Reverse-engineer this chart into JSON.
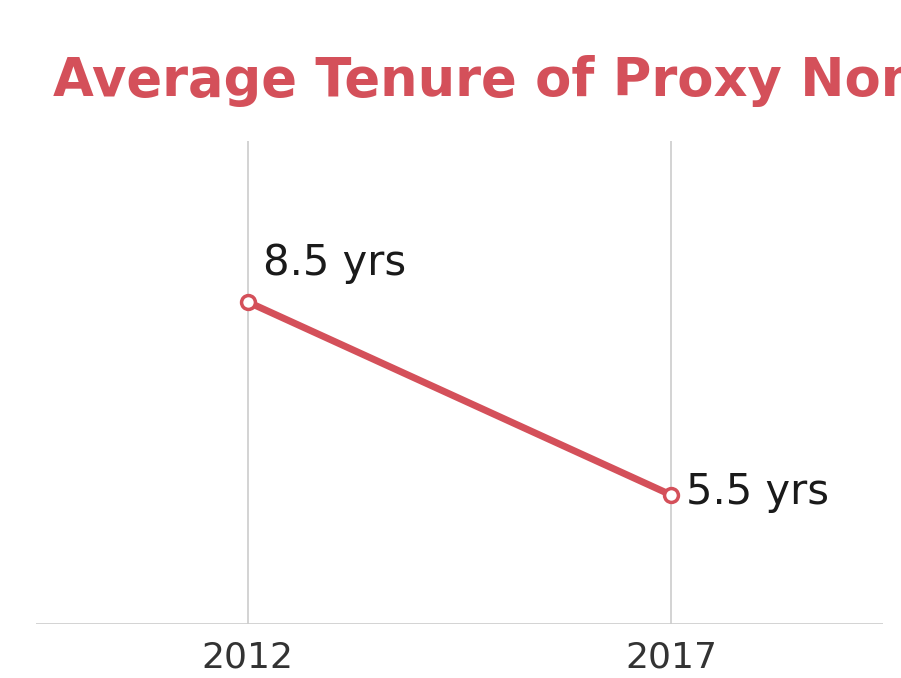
{
  "title": "Average Tenure of Proxy Nominees",
  "title_color": "#d4505a",
  "title_fontsize": 38,
  "years": [
    2012,
    2017
  ],
  "values": [
    8.5,
    5.5
  ],
  "labels": [
    "8.5 yrs",
    "5.5 yrs"
  ],
  "line_color": "#d4505a",
  "marker_color": "#d4505a",
  "marker_facecolor": "white",
  "label_color": "#1a1a1a",
  "label_fontsize": 30,
  "xtick_fontsize": 26,
  "xtick_color": "#333333",
  "background_color": "#ffffff",
  "vline_color": "#cccccc",
  "hline_color": "#cccccc",
  "ylim": [
    3.5,
    11.0
  ],
  "xlim": [
    2009.5,
    2019.5
  ]
}
